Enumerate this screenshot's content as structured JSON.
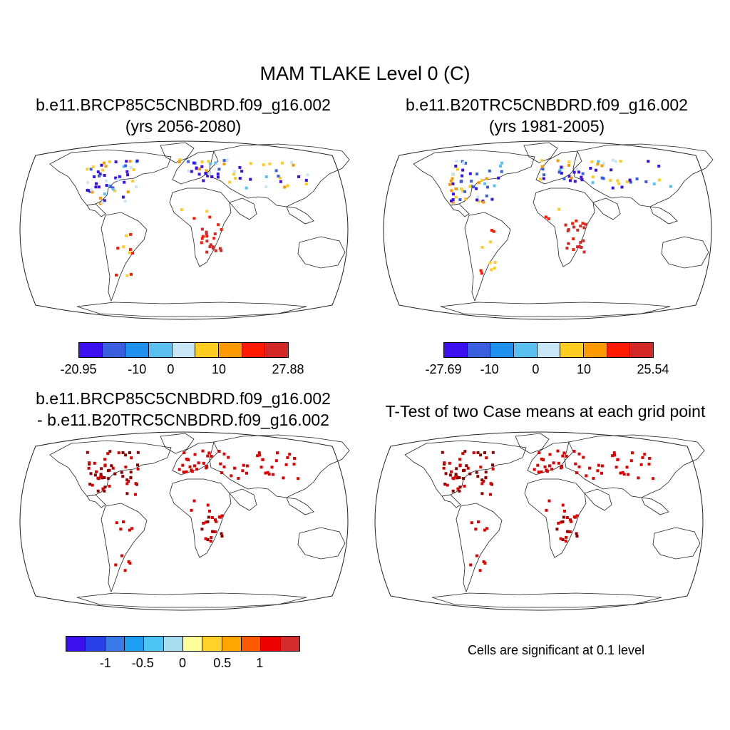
{
  "title": "MAM TLAKE Level 0 (C)",
  "panels": [
    {
      "title_line1": "b.e11.BRCP85C5CNBDRD.f09_g16.002",
      "title_line2": "(yrs 2056-2080)"
    },
    {
      "title_line1": "b.e11.B20TRC5CNBDRD.f09_g16.002",
      "title_line2": "(yrs 1981-2005)"
    },
    {
      "title_line1": "b.e11.BRCP85C5CNBDRD.f09_g16.002",
      "title_line2": "- b.e11.B20TRC5CNBDRD.f09_g16.002"
    },
    {
      "title_line1": "T-Test of two Case means at each grid point"
    }
  ],
  "colorbars": [
    {
      "labels": [
        "-20.95",
        "-10",
        "0",
        "10",
        "27.88"
      ],
      "colors": [
        "#3b0ff0",
        "#3a5ee0",
        "#1e90f0",
        "#5ac0f0",
        "#c8e6f6",
        "#ffcc22",
        "#ff9900",
        "#ff1a00",
        "#d22828"
      ]
    },
    {
      "labels": [
        "-27.69",
        "-10",
        "0",
        "10",
        "25.54"
      ],
      "colors": [
        "#3b0ff0",
        "#3a5ee0",
        "#1e90f0",
        "#5ac0f0",
        "#c8e6f6",
        "#ffcc22",
        "#ff9900",
        "#ff1a00",
        "#d22828"
      ]
    },
    {
      "labels": [
        "-1",
        "-0.5",
        "0",
        "0.5",
        "1"
      ],
      "colors": [
        "#3a10ee",
        "#2440e6",
        "#3a7ae8",
        "#1e9ef2",
        "#4ec4f4",
        "#a8dcf0",
        "#ffff99",
        "#ffd22a",
        "#ffa600",
        "#ff5a00",
        "#ee0000",
        "#d22c2c"
      ]
    }
  ],
  "note": "Cells are significant at 0.1 level",
  "colors": {
    "significant_dark": "#8b0000",
    "significant": "#e00000",
    "coast": "#222222"
  }
}
